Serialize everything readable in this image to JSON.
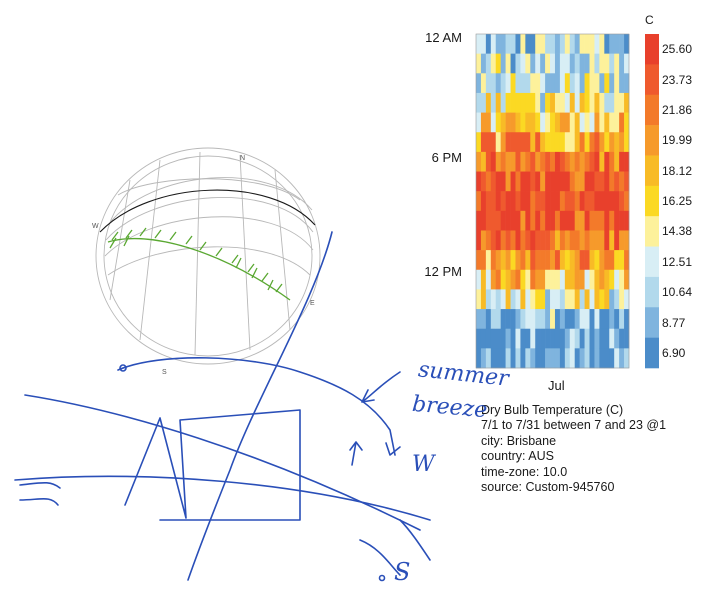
{
  "heatmap": {
    "y_ticks": [
      "12 AM",
      "6 PM",
      "12 PM"
    ],
    "x_tick": "Jul",
    "unit": "C",
    "legend_values": [
      "25.60",
      "23.73",
      "21.86",
      "19.99",
      "18.12",
      "16.25",
      "14.38",
      "12.51",
      "10.64",
      "8.77",
      "6.90"
    ],
    "legend_colors": [
      "#e8402c",
      "#ef5a2e",
      "#f37a2a",
      "#f69a2b",
      "#f8bb26",
      "#fbd923",
      "#fdf19b",
      "#d8eef5",
      "#b2d9ec",
      "#7fb4de",
      "#4b8cc9"
    ]
  },
  "info": {
    "title": "Dry Bulb Temperature (C)",
    "period": "7/1 to 7/31 between 7 and 23 @1",
    "city": "city: Brisbane",
    "country": "country: AUS",
    "timezone": "time-zone: 10.0",
    "source": "source: Custom-945760"
  },
  "sunpath": {
    "compass": [
      "N",
      "E",
      "S",
      "W"
    ]
  },
  "sketch": {
    "notes": [
      "summer",
      "breeze",
      "W",
      "S"
    ]
  }
}
